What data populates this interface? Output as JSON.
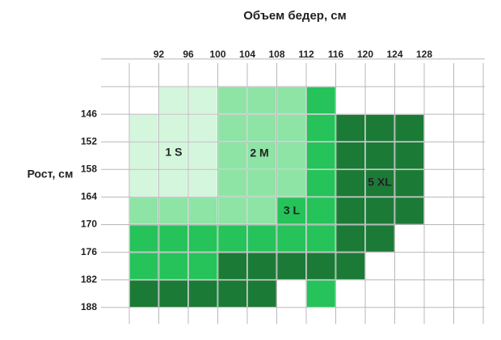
{
  "title": "Объем бедер, см",
  "y_axis_label": "Рост, см",
  "x_labels": [
    "92",
    "96",
    "100",
    "104",
    "108",
    "112",
    "116",
    "120",
    "124",
    "128"
  ],
  "y_labels": [
    "146",
    "152",
    "158",
    "164",
    "170",
    "176",
    "182",
    "188"
  ],
  "zones": [
    {
      "label": "1 S",
      "color": "#d4f6dc"
    },
    {
      "label": "2 M",
      "color": "#8de4a5"
    },
    {
      "label": "3 L",
      "color": "#25c35a"
    },
    {
      "label": "5 XL",
      "color": "#1c7a37"
    }
  ]
}
